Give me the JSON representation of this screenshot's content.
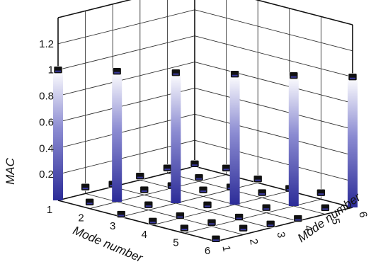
{
  "chart_data": {
    "type": "bar3d",
    "title": "",
    "xlabel": "Mode number",
    "ylabel": "Mode number",
    "zlabel": "MAC",
    "x_ticks": [
      "1",
      "2",
      "3",
      "4",
      "5",
      "6"
    ],
    "y_ticks": [
      "1",
      "2",
      "3",
      "4",
      "5",
      "6"
    ],
    "z_ticks": [
      "0.2",
      "0.4",
      "0.6",
      "0.8",
      "1",
      "1.2"
    ],
    "zlim": [
      0,
      1.4
    ],
    "grid": true,
    "diagonal_bar_color": "#3a3aa0",
    "marker_color": "#111111",
    "values": [
      [
        1.0,
        0.05,
        0.02,
        0.03,
        0.04,
        0.02
      ],
      [
        0.05,
        1.0,
        0.04,
        0.02,
        0.03,
        0.05
      ],
      [
        0.02,
        0.04,
        1.0,
        0.05,
        0.02,
        0.03
      ],
      [
        0.03,
        0.02,
        0.05,
        1.0,
        0.04,
        0.02
      ],
      [
        0.04,
        0.03,
        0.02,
        0.04,
        1.0,
        0.05
      ],
      [
        0.02,
        0.05,
        0.03,
        0.02,
        0.05,
        1.0
      ]
    ]
  }
}
